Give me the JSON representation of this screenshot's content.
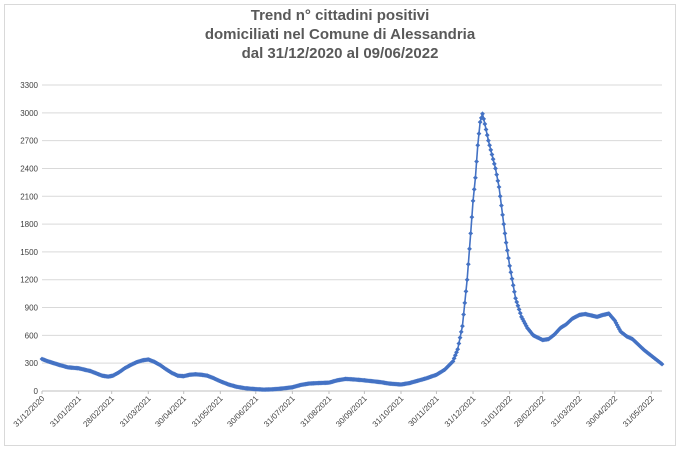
{
  "chart_data": {
    "type": "line",
    "title_lines": [
      "Trend n° cittadini positivi",
      "domiciliati nel Comune di Alessandria",
      "dal 31/12/2020 al 09/06/2022"
    ],
    "xlabel": "",
    "ylabel": "",
    "ylim": [
      0,
      3300
    ],
    "yticks": [
      0,
      300,
      600,
      900,
      1200,
      1500,
      1800,
      2100,
      2400,
      2700,
      3000,
      3300
    ],
    "xlim": [
      "2020-12-31",
      "2022-06-09"
    ],
    "xtick_labels": [
      "31/12/2020",
      "31/01/2021",
      "28/02/2021",
      "31/03/2021",
      "30/04/2021",
      "31/05/2021",
      "30/06/2021",
      "31/07/2021",
      "31/08/2021",
      "30/09/2021",
      "31/10/2021",
      "30/11/2021",
      "31/12/2021",
      "31/01/2022",
      "28/02/2022",
      "31/03/2022",
      "30/04/2022",
      "31/05/2022"
    ],
    "xtick_dates": [
      "2020-12-31",
      "2021-01-31",
      "2021-02-28",
      "2021-03-31",
      "2021-04-30",
      "2021-05-31",
      "2021-06-30",
      "2021-07-31",
      "2021-08-31",
      "2021-09-30",
      "2021-10-31",
      "2021-11-30",
      "2021-12-31",
      "2022-01-31",
      "2022-02-28",
      "2022-03-31",
      "2022-04-30",
      "2022-05-31"
    ],
    "grid": "horizontal",
    "legend": "none",
    "series": [
      {
        "color": "#4472c4",
        "points": [
          [
            "2020-12-31",
            345
          ],
          [
            "2021-01-05",
            320
          ],
          [
            "2021-01-10",
            300
          ],
          [
            "2021-01-15",
            280
          ],
          [
            "2021-01-22",
            255
          ],
          [
            "2021-01-31",
            245
          ],
          [
            "2021-02-05",
            230
          ],
          [
            "2021-02-10",
            215
          ],
          [
            "2021-02-15",
            190
          ],
          [
            "2021-02-20",
            165
          ],
          [
            "2021-02-25",
            155
          ],
          [
            "2021-03-01",
            165
          ],
          [
            "2021-03-06",
            200
          ],
          [
            "2021-03-11",
            245
          ],
          [
            "2021-03-16",
            280
          ],
          [
            "2021-03-21",
            310
          ],
          [
            "2021-03-26",
            330
          ],
          [
            "2021-03-31",
            340
          ],
          [
            "2021-04-05",
            315
          ],
          [
            "2021-04-10",
            280
          ],
          [
            "2021-04-15",
            235
          ],
          [
            "2021-04-20",
            195
          ],
          [
            "2021-04-25",
            165
          ],
          [
            "2021-04-30",
            160
          ],
          [
            "2021-05-05",
            175
          ],
          [
            "2021-05-10",
            180
          ],
          [
            "2021-05-15",
            175
          ],
          [
            "2021-05-20",
            165
          ],
          [
            "2021-05-25",
            140
          ],
          [
            "2021-05-31",
            105
          ],
          [
            "2021-06-07",
            70
          ],
          [
            "2021-06-14",
            45
          ],
          [
            "2021-06-21",
            30
          ],
          [
            "2021-06-30",
            20
          ],
          [
            "2021-07-07",
            15
          ],
          [
            "2021-07-14",
            18
          ],
          [
            "2021-07-21",
            25
          ],
          [
            "2021-07-31",
            40
          ],
          [
            "2021-08-07",
            65
          ],
          [
            "2021-08-14",
            80
          ],
          [
            "2021-08-21",
            85
          ],
          [
            "2021-08-31",
            90
          ],
          [
            "2021-09-07",
            115
          ],
          [
            "2021-09-14",
            130
          ],
          [
            "2021-09-21",
            125
          ],
          [
            "2021-09-30",
            115
          ],
          [
            "2021-10-07",
            105
          ],
          [
            "2021-10-14",
            95
          ],
          [
            "2021-10-21",
            80
          ],
          [
            "2021-10-31",
            70
          ],
          [
            "2021-11-07",
            85
          ],
          [
            "2021-11-14",
            110
          ],
          [
            "2021-11-21",
            135
          ],
          [
            "2021-11-30",
            175
          ],
          [
            "2021-12-07",
            230
          ],
          [
            "2021-12-14",
            320
          ],
          [
            "2021-12-18",
            450
          ],
          [
            "2021-12-22",
            700
          ],
          [
            "2021-12-26",
            1200
          ],
          [
            "2021-12-29",
            1700
          ],
          [
            "2021-12-31",
            2050
          ],
          [
            "2022-01-02",
            2300
          ],
          [
            "2022-01-04",
            2650
          ],
          [
            "2022-01-06",
            2900
          ],
          [
            "2022-01-08",
            2990
          ],
          [
            "2022-01-10",
            2880
          ],
          [
            "2022-01-13",
            2700
          ],
          [
            "2022-01-16",
            2550
          ],
          [
            "2022-01-19",
            2400
          ],
          [
            "2022-01-22",
            2200
          ],
          [
            "2022-01-25",
            1900
          ],
          [
            "2022-01-28",
            1600
          ],
          [
            "2022-01-31",
            1350
          ],
          [
            "2022-02-05",
            1000
          ],
          [
            "2022-02-10",
            800
          ],
          [
            "2022-02-15",
            680
          ],
          [
            "2022-02-20",
            600
          ],
          [
            "2022-02-28",
            550
          ],
          [
            "2022-03-05",
            560
          ],
          [
            "2022-03-10",
            610
          ],
          [
            "2022-03-15",
            680
          ],
          [
            "2022-03-20",
            720
          ],
          [
            "2022-03-25",
            780
          ],
          [
            "2022-03-31",
            820
          ],
          [
            "2022-04-05",
            830
          ],
          [
            "2022-04-10",
            815
          ],
          [
            "2022-04-15",
            800
          ],
          [
            "2022-04-20",
            820
          ],
          [
            "2022-04-25",
            835
          ],
          [
            "2022-04-30",
            760
          ],
          [
            "2022-05-05",
            640
          ],
          [
            "2022-05-10",
            590
          ],
          [
            "2022-05-15",
            560
          ],
          [
            "2022-05-20",
            500
          ],
          [
            "2022-05-25",
            440
          ],
          [
            "2022-05-31",
            380
          ],
          [
            "2022-06-05",
            330
          ],
          [
            "2022-06-09",
            290
          ]
        ]
      }
    ]
  }
}
